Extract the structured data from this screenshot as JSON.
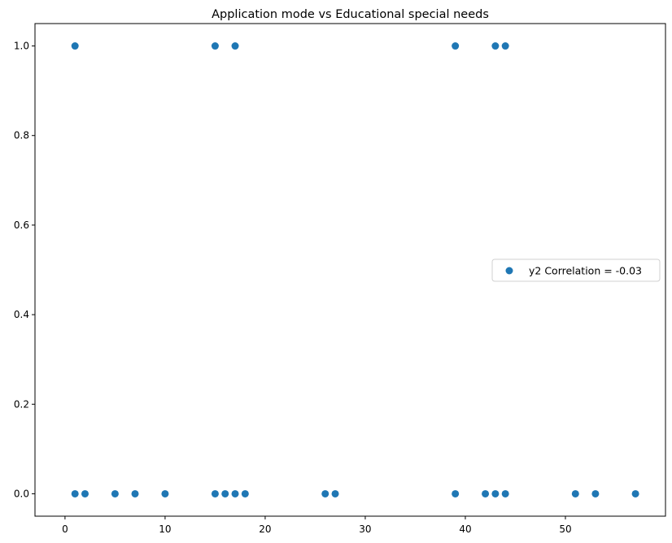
{
  "chart_data": {
    "type": "scatter",
    "title": "Application mode vs Educational special needs",
    "xlabel": "",
    "ylabel": "",
    "xlim": [
      -3,
      60
    ],
    "ylim": [
      -0.05,
      1.05
    ],
    "x_ticks": [
      0,
      10,
      20,
      30,
      40,
      50
    ],
    "x_tick_labels": [
      "0",
      "10",
      "20",
      "30",
      "40",
      "50"
    ],
    "y_ticks": [
      0.0,
      0.2,
      0.4,
      0.6,
      0.8,
      1.0
    ],
    "y_tick_labels": [
      "0.0",
      "0.2",
      "0.4",
      "0.6",
      "0.8",
      "1.0"
    ],
    "grid": false,
    "legend_position": "center-right",
    "series": [
      {
        "name": "y2 Correlation = -0.03",
        "color": "#1f77b4",
        "points": [
          [
            1,
            1
          ],
          [
            15,
            1
          ],
          [
            17,
            1
          ],
          [
            39,
            1
          ],
          [
            43,
            1
          ],
          [
            44,
            1
          ],
          [
            1,
            0
          ],
          [
            2,
            0
          ],
          [
            5,
            0
          ],
          [
            7,
            0
          ],
          [
            10,
            0
          ],
          [
            15,
            0
          ],
          [
            16,
            0
          ],
          [
            17,
            0
          ],
          [
            18,
            0
          ],
          [
            26,
            0
          ],
          [
            27,
            0
          ],
          [
            39,
            0
          ],
          [
            42,
            0
          ],
          [
            43,
            0
          ],
          [
            44,
            0
          ],
          [
            51,
            0
          ],
          [
            53,
            0
          ],
          [
            57,
            0
          ]
        ]
      }
    ]
  }
}
